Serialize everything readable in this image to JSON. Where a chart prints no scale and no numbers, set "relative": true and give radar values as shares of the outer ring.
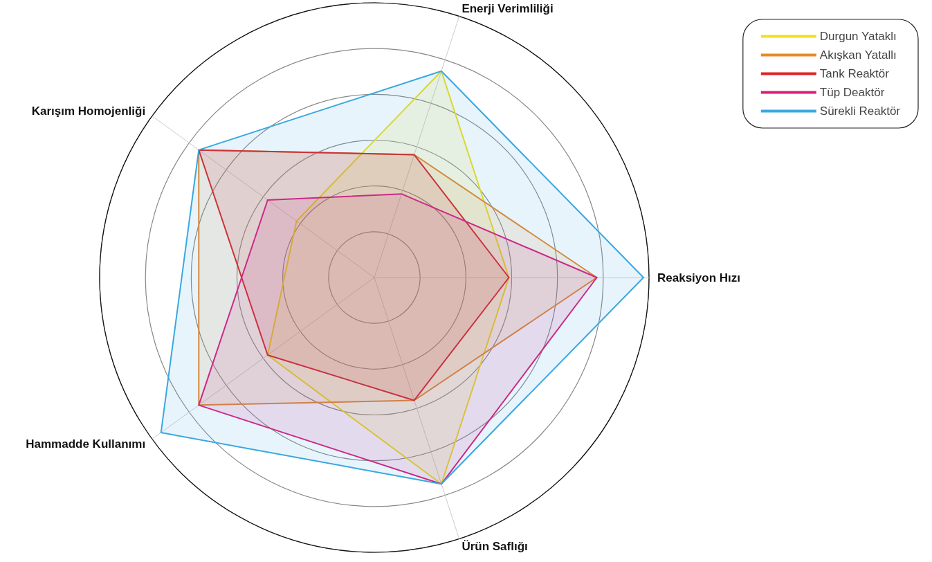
{
  "chart_data": {
    "type": "radar",
    "relative": true,
    "legend": "top right",
    "marker": "none",
    "categories": [
      "Enerji Verimliliği",
      "Reaksiyon Hızı",
      "Ürün Saflığı",
      "Hammadde Kullanımı",
      "Karışım Homojenliği"
    ],
    "series": [
      {
        "name": "Durgun Yataklı",
        "color": "#f2e01a",
        "values": [
          0.79,
          0.49,
          0.79,
          0.48,
          0.35
        ]
      },
      {
        "name": "Akışkan Yatallı",
        "color": "#e8892a",
        "values": [
          0.47,
          0.81,
          0.47,
          0.79,
          0.79
        ]
      },
      {
        "name": "Tank Reaktör",
        "color": "#e02424",
        "values": [
          0.47,
          0.49,
          0.47,
          0.48,
          0.79
        ]
      },
      {
        "name": "Tüp Deaktör",
        "color": "#e0197d",
        "values": [
          0.32,
          0.81,
          0.79,
          0.79,
          0.48
        ]
      },
      {
        "name": "Sürekli Reaktör",
        "color": "#3aa8e0",
        "values": [
          0.79,
          0.98,
          0.79,
          0.96,
          0.79
        ]
      }
    ]
  }
}
